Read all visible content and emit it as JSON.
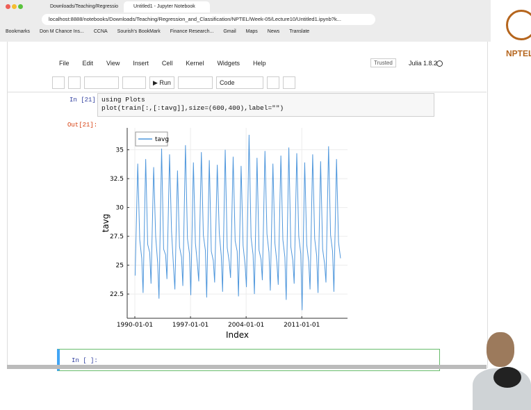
{
  "browser": {
    "tabs": [
      "Downloads/Teaching/Regressio",
      "Untitled1 - Jupyter Notebook"
    ],
    "url": "localhost:8888/notebooks/Downloads/Teaching/Regression_and_Classification/NPTEL/Week-05/Lecture10/Untitled1.ipynb?k...",
    "bookmarks": [
      "Bookmarks",
      "Don M Chance Ins...",
      "CCNA",
      "Sourish's BookMark",
      "Finance Research...",
      "Gmail",
      "Maps",
      "News",
      "Translate"
    ]
  },
  "logo": "NPTEL",
  "jupyter": {
    "menu": [
      "File",
      "Edit",
      "View",
      "Insert",
      "Cell",
      "Kernel",
      "Widgets",
      "Help"
    ],
    "trusted": "Trusted",
    "kernel": "Julia 1.8.2",
    "run": "Run",
    "cell_type": "Code",
    "cells": [
      {
        "prompt": "In [21]:",
        "code": [
          "using Plots",
          "plot(train[:,[:tavg]],size=(600,400),label=\"\")"
        ]
      },
      {
        "prompt": "Out[21]:"
      },
      {
        "prompt": "In [ ]:"
      }
    ]
  },
  "chart_data": {
    "type": "line",
    "xlabel": "Index",
    "ylabel": "tavg",
    "legend": "upper left",
    "xlim": [
      "1989-01-15",
      "2016-10-01"
    ],
    "ylim": [
      20.4,
      36.9
    ],
    "xticks": [
      "1990-01-01",
      "1997-01-01",
      "2004-01-01",
      "2011-01-01"
    ],
    "yticks": [
      22.5,
      25.0,
      27.5,
      30.0,
      32.5,
      35.0
    ],
    "grid": true,
    "x": [
      "1990-01-15",
      "1990-05-15",
      "1990-08-15",
      "1990-11-15",
      "1991-01-15",
      "1991-05-15",
      "1991-08-15",
      "1991-11-15",
      "1992-01-15",
      "1992-05-15",
      "1992-08-15",
      "1992-11-15",
      "1993-01-15",
      "1993-05-15",
      "1993-08-15",
      "1993-11-15",
      "1994-01-15",
      "1994-05-15",
      "1994-08-15",
      "1994-11-15",
      "1995-01-15",
      "1995-05-15",
      "1995-08-15",
      "1995-11-15",
      "1996-01-15",
      "1996-05-15",
      "1996-08-15",
      "1996-11-15",
      "1997-01-15",
      "1997-05-15",
      "1997-08-15",
      "1997-11-15",
      "1998-01-15",
      "1998-05-15",
      "1998-08-15",
      "1998-11-15",
      "1999-01-15",
      "1999-05-15",
      "1999-08-15",
      "1999-11-15",
      "2000-01-15",
      "2000-05-15",
      "2000-08-15",
      "2000-11-15",
      "2001-01-15",
      "2001-05-15",
      "2001-08-15",
      "2001-11-15",
      "2002-01-15",
      "2002-05-15",
      "2002-08-15",
      "2002-11-15",
      "2003-01-15",
      "2003-05-15",
      "2003-08-15",
      "2003-11-15",
      "2004-01-15",
      "2004-05-15",
      "2004-08-15",
      "2004-11-15",
      "2005-01-15",
      "2005-05-15",
      "2005-08-15",
      "2005-11-15",
      "2006-01-15",
      "2006-05-15",
      "2006-08-15",
      "2006-11-15",
      "2007-01-15",
      "2007-05-15",
      "2007-08-15",
      "2007-11-15",
      "2008-01-15",
      "2008-05-15",
      "2008-08-15",
      "2008-11-15",
      "2009-01-15",
      "2009-05-15",
      "2009-08-15",
      "2009-11-15",
      "2010-01-15",
      "2010-05-15",
      "2010-08-15",
      "2010-11-15",
      "2011-01-15",
      "2011-05-15",
      "2011-08-15",
      "2011-11-15",
      "2012-01-15",
      "2012-05-15",
      "2012-08-15",
      "2012-11-15",
      "2013-01-15",
      "2013-05-15",
      "2013-08-15",
      "2013-11-15",
      "2014-01-15",
      "2014-05-15",
      "2014-08-15",
      "2014-11-15",
      "2015-01-15",
      "2015-05-15",
      "2015-08-15",
      "2015-11-15"
    ],
    "series": [
      {
        "name": "tavg",
        "color": "#4f97dc",
        "values": [
          24.1,
          33.8,
          27.2,
          25.6,
          22.6,
          34.2,
          26.8,
          26.1,
          23.4,
          33.5,
          27.5,
          25.2,
          22.1,
          35.1,
          26.4,
          25.9,
          23.8,
          34.6,
          27.9,
          24.8,
          22.9,
          33.2,
          26.6,
          25.7,
          23.2,
          35.4,
          27.3,
          26.0,
          22.4,
          33.9,
          26.9,
          25.1,
          23.6,
          34.8,
          27.6,
          26.3,
          22.2,
          34.1,
          26.2,
          25.4,
          23.5,
          33.7,
          27.8,
          25.8,
          22.7,
          35.0,
          26.5,
          25.3,
          23.9,
          34.4,
          27.1,
          26.2,
          22.3,
          33.6,
          26.7,
          25.0,
          23.1,
          36.3,
          27.4,
          25.9,
          22.5,
          34.3,
          26.3,
          25.5,
          23.7,
          34.9,
          27.7,
          26.1,
          22.8,
          33.8,
          26.9,
          25.2,
          23.3,
          34.5,
          27.2,
          25.7,
          22.0,
          35.2,
          26.6,
          25.4,
          23.4,
          34.7,
          27.5,
          26.0,
          21.1,
          33.9,
          26.8,
          25.3,
          22.9,
          34.6,
          27.3,
          25.8,
          22.6,
          34.0,
          26.4,
          25.1,
          23.5,
          35.3,
          27.6,
          26.2,
          22.7,
          34.2,
          27.0,
          25.6
        ]
      }
    ]
  }
}
